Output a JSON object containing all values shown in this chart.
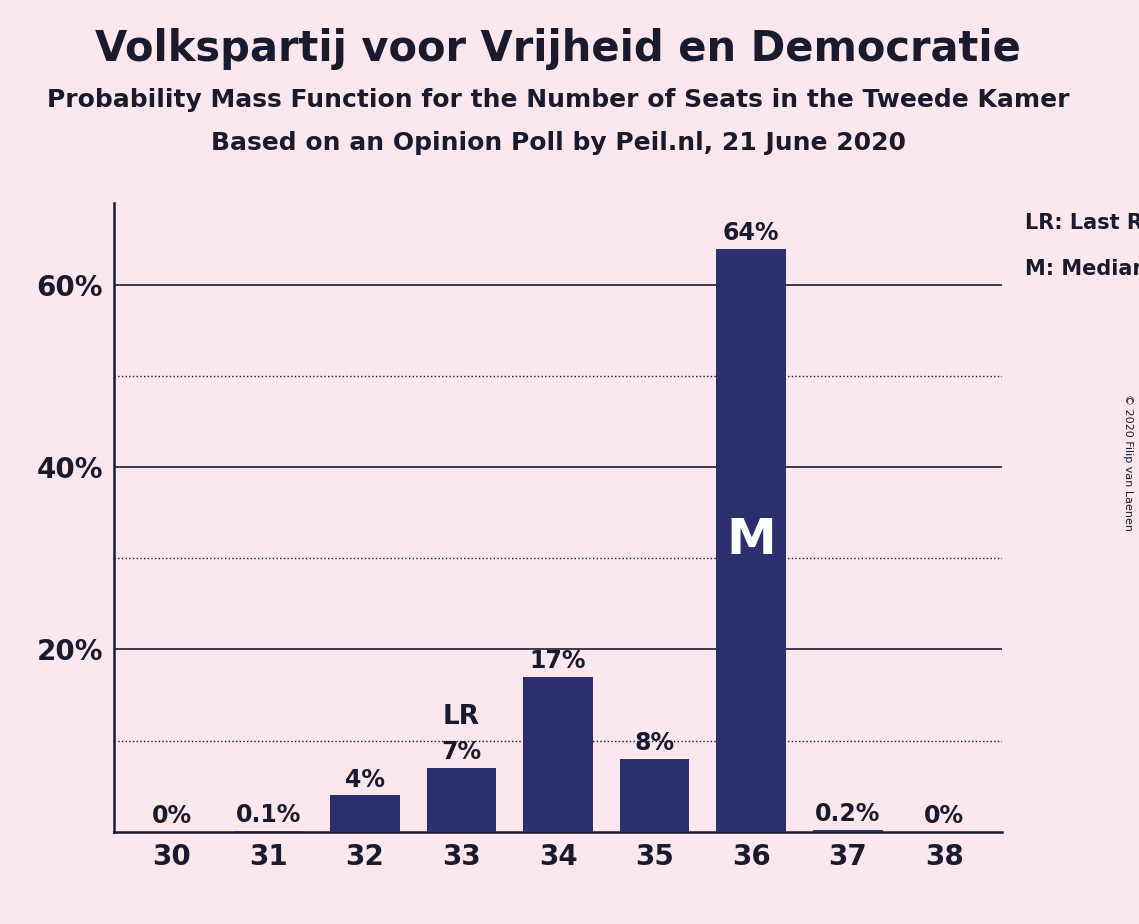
{
  "title": "Volkspartij voor Vrijheid en Democratie",
  "subtitle1": "Probability Mass Function for the Number of Seats in the Tweede Kamer",
  "subtitle2": "Based on an Opinion Poll by Peil.nl, 21 June 2020",
  "copyright": "© 2020 Filip van Laenen",
  "categories": [
    30,
    31,
    32,
    33,
    34,
    35,
    36,
    37,
    38
  ],
  "values": [
    0.0,
    0.1,
    4.0,
    7.0,
    17.0,
    8.0,
    64.0,
    0.2,
    0.0
  ],
  "bar_color": "#2b2f6e",
  "bar_labels": [
    "0%",
    "0.1%",
    "4%",
    "7%",
    "17%",
    "8%",
    "64%",
    "0.2%",
    "0%"
  ],
  "lr_bar_index": 3,
  "median_bar_index": 6,
  "lr_label": "LR",
  "median_label": "M",
  "legend_lr": "LR: Last Result",
  "legend_m": "M: Median",
  "background_color": "#fce8ec",
  "bar_label_fontsize": 17,
  "bar_label_color": "#1a1a2e",
  "solid_grid_ticks": [
    20,
    40,
    60
  ],
  "dotted_grid_ticks": [
    10,
    30,
    50
  ],
  "ytick_positions": [
    20,
    40,
    60
  ],
  "ytick_labels": [
    "20%",
    "40%",
    "60%"
  ],
  "ylim": [
    0,
    69
  ],
  "text_color": "#1a1a2e",
  "title_fontsize": 30,
  "subtitle_fontsize": 18
}
